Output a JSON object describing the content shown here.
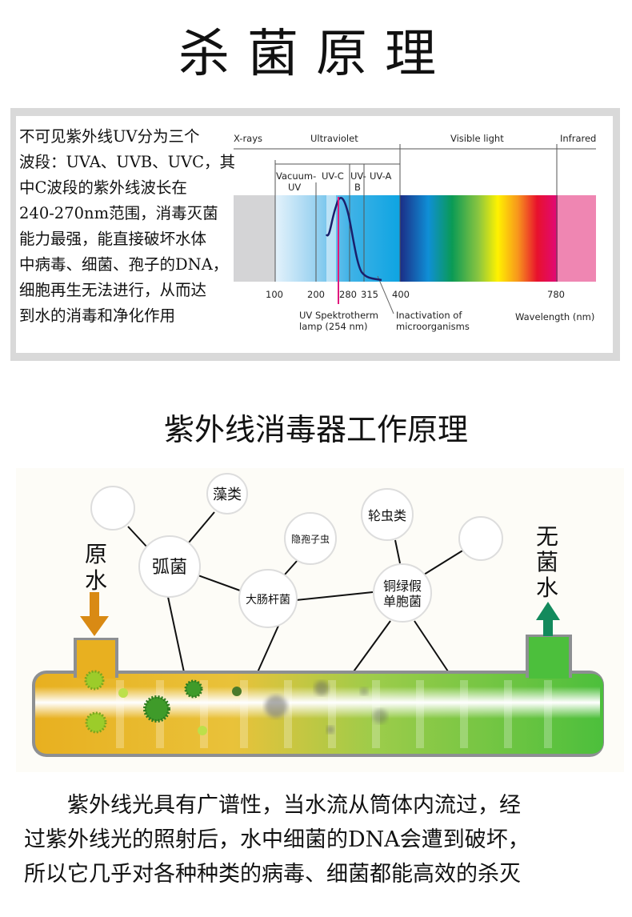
{
  "title": "杀菌原理",
  "uv_intro": {
    "lines": [
      "不可见紫外线UV分为三个",
      "波段：UVA、UVB、UVC，其",
      "中C波段的紫外线波长在",
      "240-270nm范围，消毒灭菌",
      "能力最强，能直接破坏水体",
      "中病毒、细菌、孢子的DNA，",
      "细胞再生无法进行，从而达",
      "到水的消毒和净化作用"
    ]
  },
  "spectrum": {
    "bands": [
      "X-rays",
      "Ultraviolet",
      "Visible light",
      "Infrared"
    ],
    "uv_subbands": [
      "Vacuum-",
      "UV",
      "UV-C",
      "UV-",
      "B",
      "UV-A"
    ],
    "ticks": [
      "100",
      "200",
      "280",
      "315",
      "400",
      "780"
    ],
    "lamp_label": [
      "UV Spektrotherm",
      "lamp (254 nm)"
    ],
    "inactivation_label": [
      "Inactivation of",
      "microorganisms"
    ],
    "axis_label": "Wavelength (nm)",
    "colors": {
      "lamp_line": "#e0197d",
      "curve": "#1a1f6b",
      "infrared": "#ef86b2"
    }
  },
  "title2": "紫外线消毒器工作原理",
  "diagram": {
    "inlet_label": [
      "原",
      "水"
    ],
    "outlet_label": [
      "无",
      "菌",
      "水"
    ],
    "organisms": [
      "藻类",
      "弧菌",
      "隐孢子虫",
      "大肠杆菌",
      "轮虫类",
      "铜绿假",
      "单胞菌"
    ],
    "colors": {
      "inlet": "#e8b020",
      "outlet": "#4cbf3c",
      "inlet_arrow": "#d98a14",
      "outlet_arrow": "#138a5c"
    }
  },
  "paragraph": [
    "　　紫外线光具有广谱性，当水流从筒体内流过，经",
    "过紫外线光的照射后，水中细菌的DNA会遭到破坏，",
    "所以它几乎对各种种类的病毒、细菌都能高效的杀灭"
  ]
}
